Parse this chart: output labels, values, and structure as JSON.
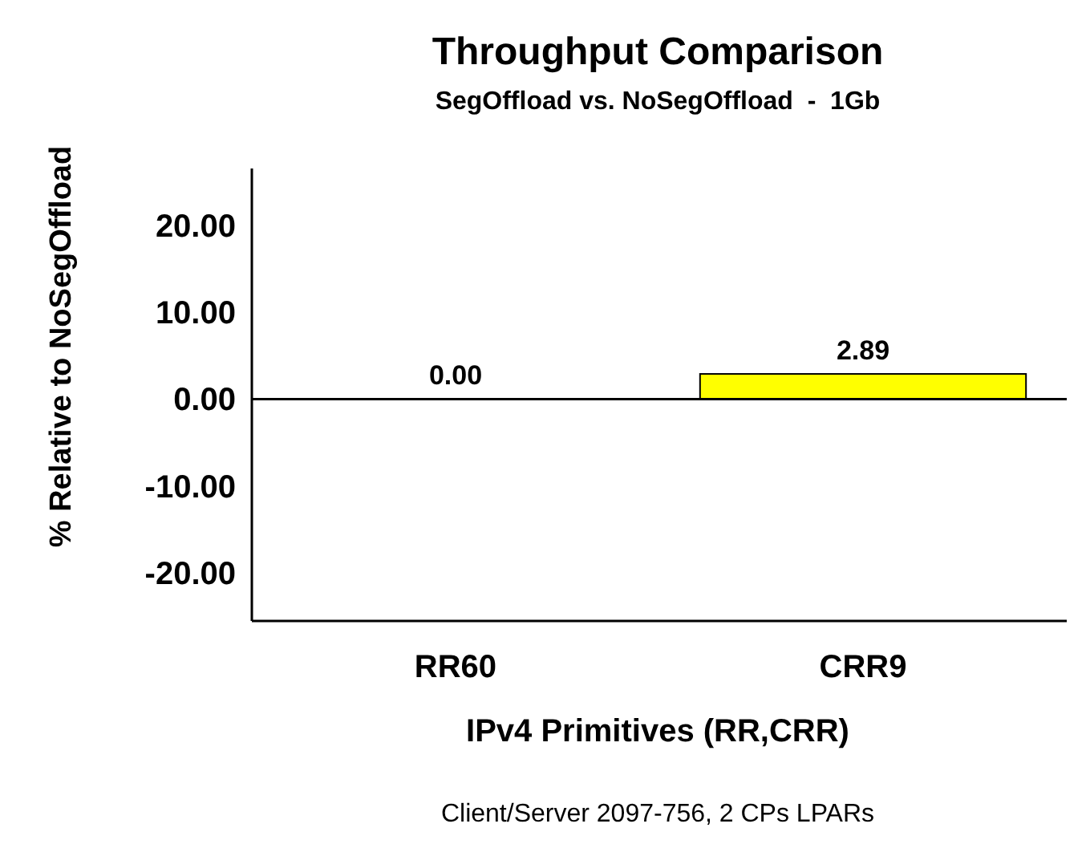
{
  "chart_data": {
    "type": "bar",
    "title": "Throughput Comparison",
    "subtitle": "SegOffload vs. NoSegOffload  -  1Gb",
    "ylabel": "% Relative to NoSegOffload",
    "xlabel": "IPv4 Primitives (RR,CRR)",
    "categories": [
      "RR60",
      "CRR9"
    ],
    "values": [
      0.0,
      2.89
    ],
    "color": "#ffff00",
    "value_labels": [
      "0.00",
      "2.89"
    ],
    "ylim": [
      -25.5,
      26.5
    ],
    "yticks": [
      {
        "value": -20,
        "label": "-20.00"
      },
      {
        "value": -10,
        "label": "-10.00"
      },
      {
        "value": 0,
        "label": "0.00"
      },
      {
        "value": 10,
        "label": "10.00"
      },
      {
        "value": 20,
        "label": "20.00"
      }
    ],
    "annotations": [
      "Client/Server 2097-756, 2 CPs LPARs"
    ]
  }
}
